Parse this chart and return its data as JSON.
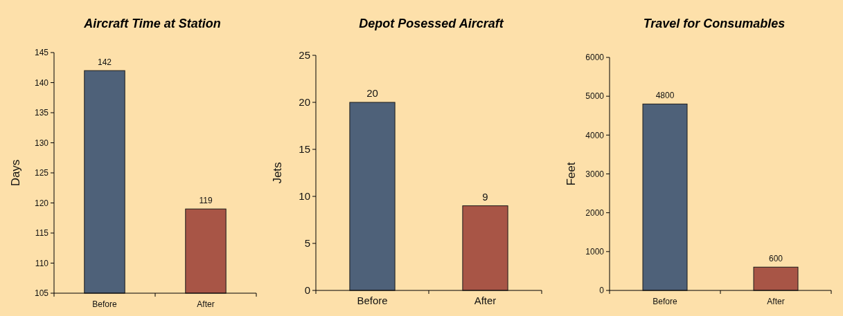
{
  "chart_data": [
    {
      "type": "bar",
      "title": "Aircraft Time at Station",
      "ylabel": "Days",
      "categories": [
        "Before",
        "After"
      ],
      "values": [
        142,
        119
      ],
      "colors": [
        "#4e6179",
        "#a85546"
      ],
      "ylim": [
        105,
        145
      ],
      "yticks": [
        105,
        110,
        115,
        120,
        125,
        130,
        135,
        140,
        145
      ],
      "data_labels": true,
      "grid": false
    },
    {
      "type": "bar",
      "title": "Depot Posessed Aircraft",
      "ylabel": "Jets",
      "categories": [
        "Before",
        "After"
      ],
      "values": [
        20,
        9
      ],
      "colors": [
        "#4e6179",
        "#a85546"
      ],
      "ylim": [
        0,
        25
      ],
      "yticks": [
        0,
        5,
        10,
        15,
        20,
        25
      ],
      "data_labels": true,
      "grid": false
    },
    {
      "type": "bar",
      "title": "Travel for Consumables",
      "ylabel": "Feet",
      "categories": [
        "Before",
        "After"
      ],
      "values": [
        4800,
        600
      ],
      "colors": [
        "#4e6179",
        "#a85546"
      ],
      "ylim": [
        0,
        6000
      ],
      "yticks": [
        0,
        1000,
        2000,
        3000,
        4000,
        5000,
        6000
      ],
      "data_labels": true,
      "grid": false
    }
  ]
}
